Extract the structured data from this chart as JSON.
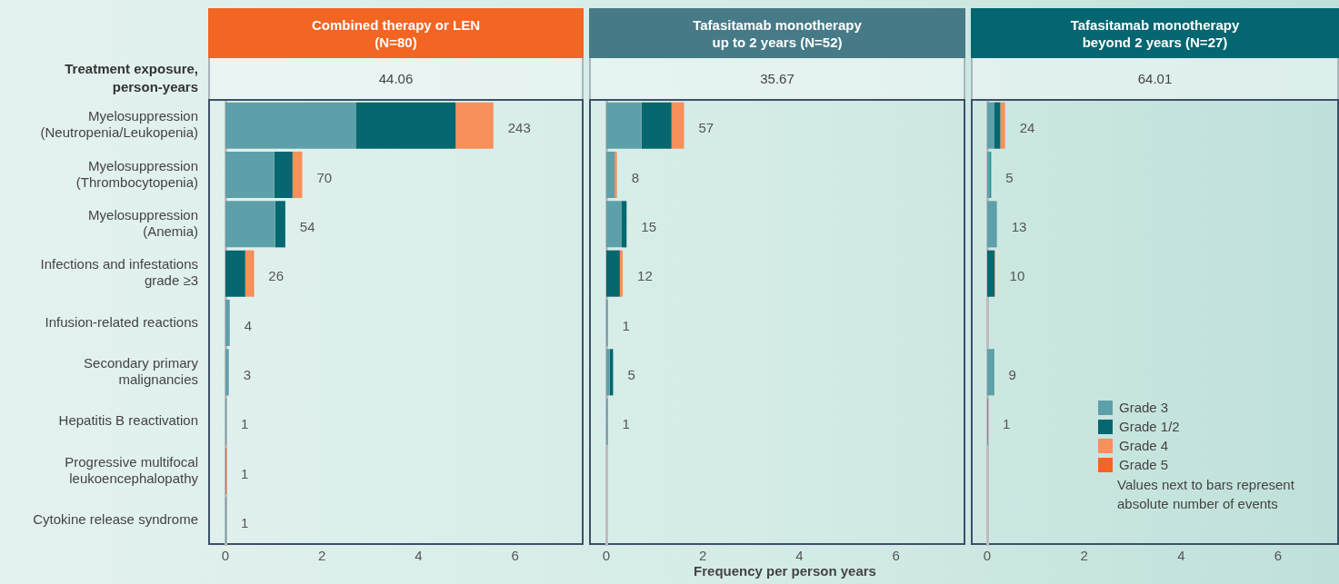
{
  "chart_data": [
    {
      "type": "bar",
      "orientation": "horizontal",
      "stacked": true,
      "grid": false,
      "legend": false,
      "title": "Combined therapy or LEN\n(N=80)",
      "subtitle": "44.06",
      "categories": [
        "Myelosuppression\n(Neutropenia/Leukopenia)",
        "Myelosuppression\n(Thrombocytopenia)",
        "Myelosuppression\n(Anemia)",
        "Infections and infestations\ngrade ≥3",
        "Infusion-related reactions",
        "Secondary primary\nmalignancies",
        "Hepatitis B reactivation",
        "Progressive multifocal\nleukoencephalopathy",
        "Cytokine release syndrome"
      ],
      "series": [
        {
          "color": "#5ea0a9",
          "values": [
            2.7,
            1.01,
            1.03,
            null,
            0.09,
            0.07,
            0.02,
            null,
            0.02
          ]
        },
        {
          "color": "#05676f",
          "values": [
            2.07,
            0.38,
            0.21,
            0.41,
            null,
            null,
            null,
            null,
            null
          ]
        },
        {
          "color": "#f7905a",
          "values": [
            0.78,
            0.2,
            null,
            0.16,
            null,
            null,
            null,
            null,
            null
          ]
        },
        {
          "color": "#f26522",
          "values": [
            null,
            null,
            null,
            0.02,
            null,
            null,
            null,
            0.02,
            null
          ]
        }
      ],
      "xlim": [
        0,
        7.4
      ],
      "xticks": [
        0,
        2,
        4,
        6
      ],
      "annotations": [
        "Treatment exposure, person-years",
        {
          "text": "243",
          "x": 5.55,
          "y": "Myelosuppression\n(Neutropenia/Leukopenia)"
        },
        {
          "text": "70",
          "x": 1.59,
          "y": "Myelosuppression\n(Thrombocytopenia)"
        },
        {
          "text": "54",
          "x": 1.24,
          "y": "Myelosuppression\n(Anemia)"
        },
        {
          "text": "26",
          "x": 0.59,
          "y": "Infections and infestations\ngrade ≥3"
        },
        {
          "text": "4",
          "x": 0.09,
          "y": "Infusion-related reactions"
        },
        {
          "text": "3",
          "x": 0.07,
          "y": "Secondary primary\nmalignancies"
        },
        {
          "text": "1",
          "x": 0.02,
          "y": "Hepatitis B reactivation"
        },
        {
          "text": "1",
          "x": 0.02,
          "y": "Progressive multifocal\nleukoencephalopathy"
        },
        {
          "text": "1",
          "x": 0.02,
          "y": "Cytokine release syndrome"
        }
      ]
    },
    {
      "type": "bar",
      "orientation": "horizontal",
      "stacked": true,
      "grid": false,
      "legend": false,
      "tick_labels": "x",
      "title": "Tafasitamab monotherapy\nup to 2 years (N=52)",
      "subtitle": "35.67",
      "xlabel": "Frequency per person years",
      "categories": [
        "Myelosuppression\n(Neutropenia/Leukopenia)",
        "Myelosuppression\n(Thrombocytopenia)",
        "Myelosuppression\n(Anemia)",
        "Infections and infestations\ngrade ≥3",
        "Infusion-related reactions",
        "Secondary primary\nmalignancies",
        "Hepatitis B reactivation",
        "Progressive multifocal\nleukoencephalopathy",
        "Cytokine release syndrome"
      ],
      "series": [
        {
          "color": "#5ea0a9",
          "values": [
            0.73,
            0.17,
            0.32,
            null,
            0.03,
            0.07,
            0.03,
            null,
            null
          ]
        },
        {
          "color": "#05676f",
          "values": [
            0.62,
            null,
            0.1,
            0.28,
            null,
            0.07,
            null,
            null,
            null
          ]
        },
        {
          "color": "#f7905a",
          "values": [
            0.26,
            0.05,
            null,
            0.06,
            null,
            null,
            null,
            null,
            null
          ]
        }
      ],
      "xlim": [
        0,
        7.4
      ],
      "xticks": [
        0,
        2,
        4,
        6
      ],
      "annotations": [
        {
          "text": "57",
          "x": 1.61,
          "y": "Myelosuppression\n(Neutropenia/Leukopenia)"
        },
        {
          "text": "8",
          "x": 0.22,
          "y": "Myelosuppression\n(Thrombocytopenia)"
        },
        {
          "text": "15",
          "x": 0.42,
          "y": "Myelosuppression\n(Anemia)"
        },
        {
          "text": "12",
          "x": 0.34,
          "y": "Infections and infestations\ngrade ≥3"
        },
        {
          "text": "1",
          "x": 0.03,
          "y": "Infusion-related reactions"
        },
        {
          "text": "5",
          "x": 0.14,
          "y": "Secondary primary\nmalignancies"
        },
        {
          "text": "1",
          "x": 0.03,
          "y": "Hepatitis B reactivation"
        }
      ]
    },
    {
      "type": "bar",
      "orientation": "horizontal",
      "stacked": true,
      "grid": false,
      "legend": "bottom",
      "tick_labels": "x",
      "title": "Tafasitamab monotherapy\nbeyond 2 years (N=27)",
      "subtitle": "64.01",
      "categories": [
        "Myelosuppression\n(Neutropenia/Leukopenia)",
        "Myelosuppression\n(Thrombocytopenia)",
        "Myelosuppression\n(Anemia)",
        "Infections and infestations\ngrade ≥3",
        "Infusion-related reactions",
        "Secondary primary\nmalignancies",
        "Hepatitis B reactivation",
        "Progressive multifocal\nleukoencephalopathy",
        "Cytokine release syndrome"
      ],
      "series": [
        {
          "name": "Grade 3",
          "color": "#5ea0a9",
          "values": [
            0.15,
            0.06,
            0.2,
            null,
            null,
            0.12,
            0.02,
            null,
            null
          ]
        },
        {
          "name": "Grade 1/2",
          "color": "#05676f",
          "values": [
            0.12,
            0.02,
            null,
            0.15,
            null,
            0.02,
            null,
            null,
            null
          ]
        },
        {
          "name": "Grade 4",
          "color": "#f7905a",
          "values": [
            0.1,
            null,
            null,
            null,
            null,
            null,
            null,
            null,
            null
          ]
        },
        {
          "name": "Grade 5",
          "color": "#f26522",
          "values": [
            null,
            null,
            null,
            0.01,
            null,
            null,
            null,
            null,
            null
          ]
        }
      ],
      "xlim": [
        0,
        7.2
      ],
      "xticks": [
        0,
        2,
        4,
        6
      ],
      "annotations": [
        "Values next to bars represent absolute number of events",
        {
          "text": "24",
          "x": 0.37,
          "y": "Myelosuppression\n(Neutropenia/Leukopenia)"
        },
        {
          "text": "5",
          "x": 0.08,
          "y": "Myelosuppression\n(Thrombocytopenia)"
        },
        {
          "text": "13",
          "x": 0.2,
          "y": "Myelosuppression\n(Anemia)"
        },
        {
          "text": "10",
          "x": 0.16,
          "y": "Infections and infestations\ngrade ≥3"
        },
        {
          "text": "9",
          "x": 0.14,
          "y": "Secondary primary\nmalignancies"
        },
        {
          "text": "1",
          "x": 0.02,
          "y": "Hepatitis B reactivation"
        }
      ]
    }
  ]
}
